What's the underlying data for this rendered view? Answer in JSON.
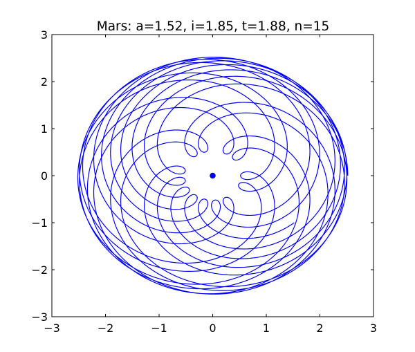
{
  "chart_data": {
    "type": "line",
    "title": "Mars: a=1.52, i=1.85, t=1.88, n=15",
    "xlabel": "",
    "ylabel": "",
    "xlim": [
      -3,
      3
    ],
    "ylim": [
      -3,
      3
    ],
    "xticks": [
      -3,
      -2,
      -1,
      0,
      1,
      2,
      3
    ],
    "yticks": [
      -3,
      -2,
      -1,
      0,
      1,
      2,
      3
    ],
    "xtick_labels": [
      "−3",
      "−2",
      "−1",
      "0",
      "1",
      "2",
      "3"
    ],
    "ytick_labels": [
      "−3",
      "−2",
      "−1",
      "0",
      "1",
      "2",
      "3"
    ],
    "grid": false,
    "series": [
      {
        "kind": "epicycle-curve",
        "equation": "z(u) = exp(i*1.85*u) + 1.52*exp(i*u)",
        "param_range": [
          0,
          94.2478
        ],
        "color": "#0000ff"
      }
    ],
    "points": [
      {
        "x": 0,
        "y": 0,
        "color": "#0000ff"
      }
    ]
  },
  "colors": {
    "curve": "#0000ff",
    "axes": "#000000",
    "background": "#ffffff"
  }
}
